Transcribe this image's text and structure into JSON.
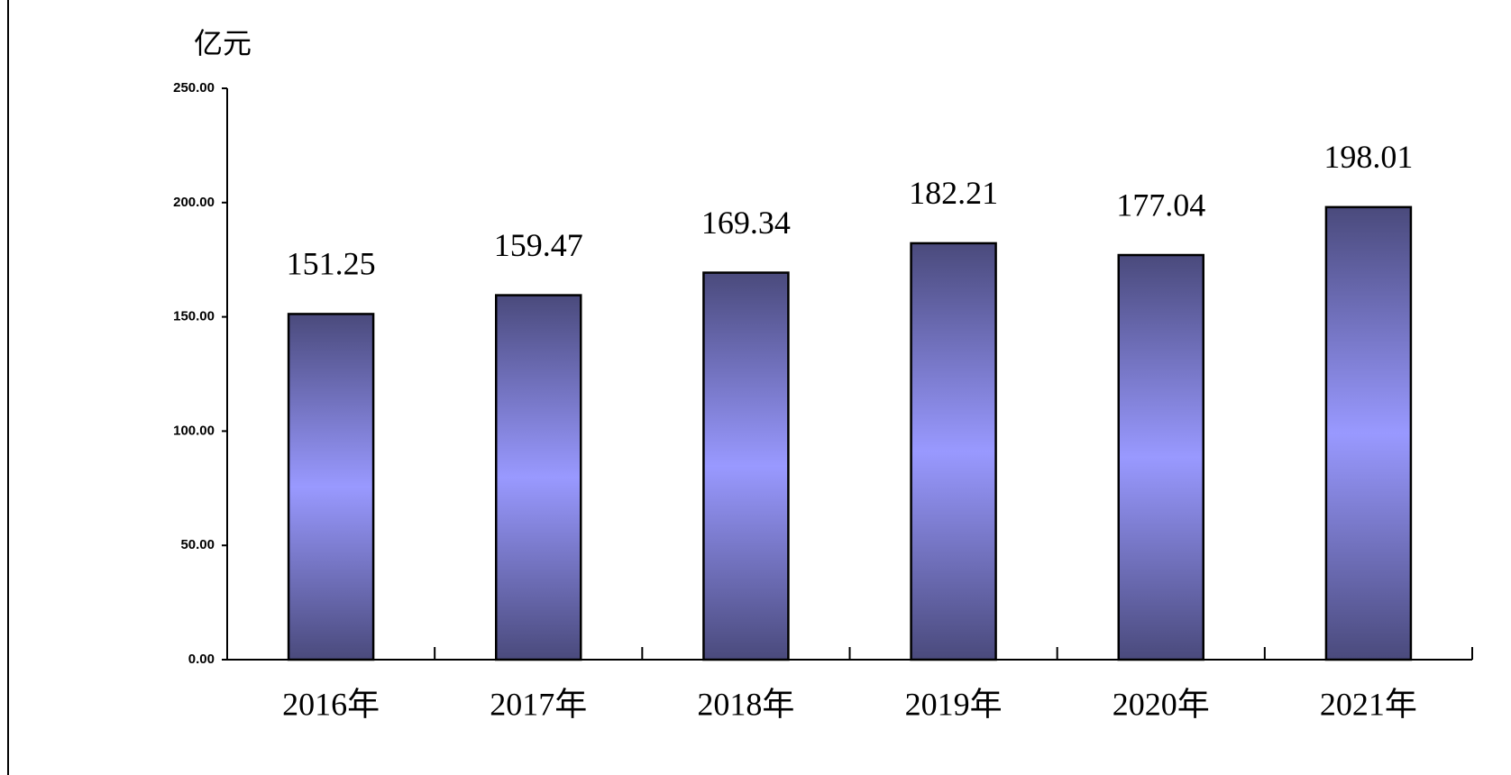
{
  "chart_data": {
    "type": "bar",
    "y_label": "亿元",
    "categories": [
      "2016年",
      "2017年",
      "2018年",
      "2019年",
      "2020年",
      "2021年"
    ],
    "values": [
      151.25,
      159.47,
      169.34,
      182.21,
      177.04,
      198.01
    ],
    "color": "#9999ff",
    "ylim": [
      0,
      250
    ],
    "yticks": [
      {
        "value": 0,
        "label": "0.00"
      },
      {
        "value": 50,
        "label": "50.00"
      },
      {
        "value": 100,
        "label": "100.00"
      },
      {
        "value": 150,
        "label": "150.00"
      },
      {
        "value": 200,
        "label": "200.00"
      },
      {
        "value": 250,
        "label": "250.00"
      }
    ]
  }
}
